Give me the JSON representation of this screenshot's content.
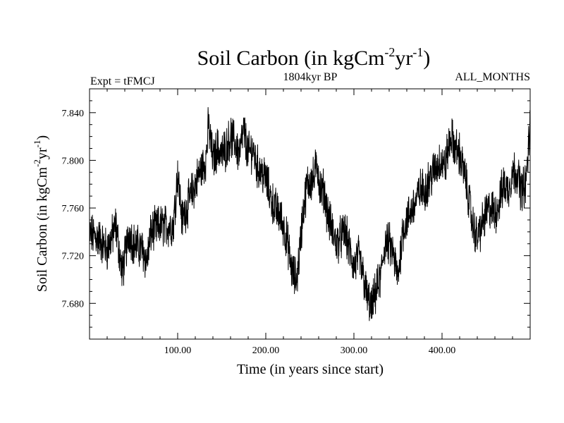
{
  "chart_data": {
    "type": "line",
    "title": "Soil Carbon (in kgCm",
    "title_sup1": "-2",
    "title_mid": "yr",
    "title_sup2": "-1",
    "title_end": ")",
    "subtitle_left": "Expt = tFMCJ",
    "subtitle_center": "1804kyr BP",
    "subtitle_right": "ALL_MONTHS",
    "xlabel": "Time (in years since start)",
    "ylabel": "Soil Carbon (in kgCm",
    "ylabel_sup1": "-2",
    "ylabel_mid": "yr",
    "ylabel_sup2": "-1",
    "ylabel_end": ")",
    "xlim": [
      0,
      500
    ],
    "ylim": [
      7.65,
      7.86
    ],
    "xticks": [
      100,
      200,
      300,
      400
    ],
    "xtick_labels": [
      "100.00",
      "200.00",
      "300.00",
      "400.00"
    ],
    "yticks": [
      7.68,
      7.72,
      7.76,
      7.8,
      7.84
    ],
    "ytick_labels": [
      "7.680",
      "7.720",
      "7.760",
      "7.800",
      "7.840"
    ],
    "series": [
      {
        "name": "Soil Carbon",
        "color": "#000000",
        "x": [
          0,
          10,
          20,
          30,
          37,
          45,
          50,
          60,
          65,
          70,
          80,
          90,
          95,
          100,
          105,
          115,
          125,
          132,
          135,
          140,
          145,
          150,
          155,
          160,
          165,
          170,
          175,
          180,
          185,
          190,
          200,
          205,
          210,
          215,
          220,
          225,
          230,
          235,
          238,
          242,
          247,
          255,
          258,
          262,
          266,
          270,
          280,
          290,
          300,
          305,
          310,
          315,
          320,
          325,
          330,
          335,
          340,
          345,
          350,
          355,
          360,
          370,
          375,
          380,
          390,
          398,
          403,
          410,
          415,
          420,
          425,
          430,
          435,
          440,
          445,
          450,
          455,
          460,
          465,
          470,
          475,
          480,
          485,
          490,
          495,
          500
        ],
        "values": [
          7.738,
          7.735,
          7.725,
          7.745,
          7.705,
          7.74,
          7.73,
          7.725,
          7.715,
          7.74,
          7.745,
          7.745,
          7.745,
          7.79,
          7.75,
          7.77,
          7.79,
          7.8,
          7.83,
          7.8,
          7.81,
          7.805,
          7.81,
          7.82,
          7.815,
          7.805,
          7.825,
          7.805,
          7.81,
          7.795,
          7.785,
          7.77,
          7.76,
          7.755,
          7.745,
          7.73,
          7.705,
          7.7,
          7.72,
          7.755,
          7.78,
          7.785,
          7.8,
          7.775,
          7.775,
          7.755,
          7.73,
          7.74,
          7.71,
          7.72,
          7.705,
          7.685,
          7.675,
          7.69,
          7.7,
          7.73,
          7.73,
          7.72,
          7.7,
          7.74,
          7.75,
          7.765,
          7.775,
          7.775,
          7.79,
          7.8,
          7.795,
          7.82,
          7.81,
          7.805,
          7.79,
          7.77,
          7.745,
          7.735,
          7.745,
          7.755,
          7.76,
          7.755,
          7.765,
          7.78,
          7.775,
          7.79,
          7.79,
          7.775,
          7.78,
          7.83
        ]
      }
    ]
  }
}
